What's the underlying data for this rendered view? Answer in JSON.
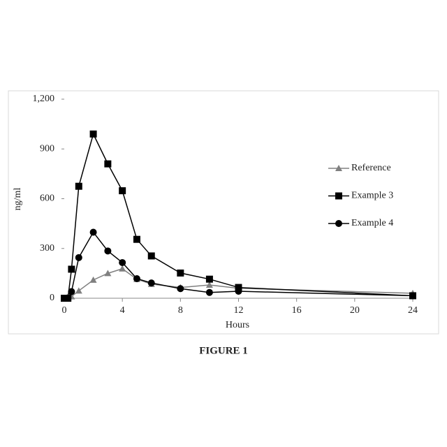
{
  "chart_data": {
    "type": "line",
    "title": "FIGURE 1",
    "xlabel": "Hours",
    "ylabel": "ng/ml",
    "xlim": [
      0,
      24
    ],
    "xticks": [
      0,
      4,
      8,
      12,
      16,
      20,
      24
    ],
    "ylim": [
      0,
      1200
    ],
    "yticks": [
      0,
      300,
      600,
      900,
      {
        "value": 1200,
        "label": "1,200"
      }
    ],
    "x": [
      0,
      0.25,
      0.5,
      1,
      2,
      3,
      4,
      5,
      6,
      8,
      10,
      12,
      24
    ],
    "legend": "right",
    "series": [
      {
        "name": "Reference",
        "color": "#808080",
        "marker": "triangle",
        "values": [
          0,
          2,
          10,
          45,
          110,
          150,
          178,
          115,
          85,
          65,
          80,
          60,
          30
        ]
      },
      {
        "name": "Example 3",
        "color": "#000000",
        "marker": "square",
        "values": [
          0,
          0,
          175,
          675,
          990,
          810,
          648,
          355,
          255,
          152,
          115,
          65,
          15
        ]
      },
      {
        "name": "Example 4",
        "color": "#000000",
        "marker": "circle",
        "values": [
          0,
          2,
          40,
          245,
          398,
          285,
          215,
          118,
          92,
          58,
          35,
          42,
          15
        ]
      }
    ]
  }
}
